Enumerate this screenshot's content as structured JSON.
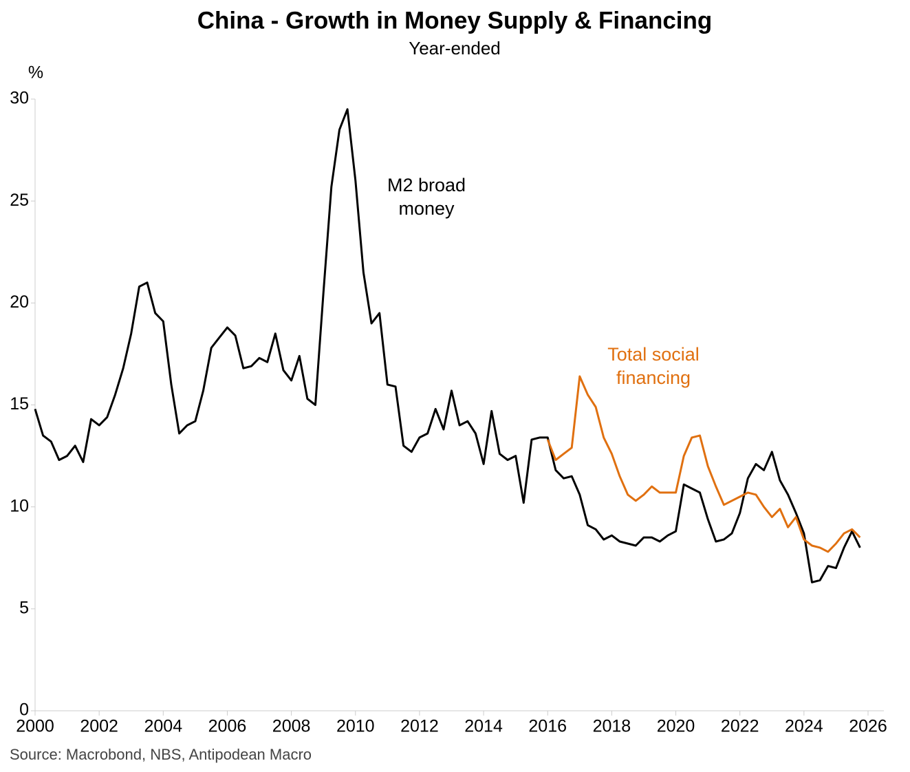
{
  "chart_data": {
    "type": "line",
    "title": "China - Growth in Money Supply & Financing",
    "subtitle": "Year-ended",
    "y_label": "%",
    "source": "Source: Macrobond, NBS, Antipodean Macro",
    "xlim": [
      2000,
      2026.5
    ],
    "xticks": [
      2000,
      2002,
      2004,
      2006,
      2008,
      2010,
      2012,
      2014,
      2016,
      2018,
      2020,
      2022,
      2024,
      2026
    ],
    "ylim": [
      0,
      30
    ],
    "yticks": [
      0,
      5,
      10,
      15,
      20,
      25,
      30
    ],
    "x": [
      2000,
      2000.25,
      2000.5,
      2000.75,
      2001,
      2001.25,
      2001.5,
      2001.75,
      2002,
      2002.25,
      2002.5,
      2002.75,
      2003,
      2003.25,
      2003.5,
      2003.75,
      2004,
      2004.25,
      2004.5,
      2004.75,
      2005,
      2005.25,
      2005.5,
      2005.75,
      2006,
      2006.25,
      2006.5,
      2006.75,
      2007,
      2007.25,
      2007.5,
      2007.75,
      2008,
      2008.25,
      2008.5,
      2008.75,
      2009,
      2009.25,
      2009.5,
      2009.75,
      2010,
      2010.25,
      2010.5,
      2010.75,
      2011,
      2011.25,
      2011.5,
      2011.75,
      2012,
      2012.25,
      2012.5,
      2012.75,
      2013,
      2013.25,
      2013.5,
      2013.75,
      2014,
      2014.25,
      2014.5,
      2014.75,
      2015,
      2015.25,
      2015.5,
      2015.75,
      2016,
      2016.25,
      2016.5,
      2016.75,
      2017,
      2017.25,
      2017.5,
      2017.75,
      2018,
      2018.25,
      2018.5,
      2018.75,
      2019,
      2019.25,
      2019.5,
      2019.75,
      2020,
      2020.25,
      2020.5,
      2020.75,
      2021,
      2021.25,
      2021.5,
      2021.75,
      2022,
      2022.25,
      2022.5,
      2022.75,
      2023,
      2023.25,
      2023.5,
      2023.75,
      2024,
      2024.25,
      2024.5,
      2024.75,
      2025,
      2025.25,
      2025.5,
      2025.75
    ],
    "series": [
      {
        "name": "M2 broad money",
        "color": "#000000",
        "values": [
          14.8,
          13.5,
          13.2,
          12.3,
          12.5,
          13.0,
          12.2,
          14.3,
          14.0,
          14.4,
          15.5,
          16.8,
          18.5,
          20.8,
          21.0,
          19.5,
          19.1,
          16.0,
          13.6,
          14.0,
          14.2,
          15.7,
          17.8,
          18.3,
          18.8,
          18.4,
          16.8,
          16.9,
          17.3,
          17.1,
          18.5,
          16.7,
          16.2,
          17.4,
          15.3,
          15.0,
          20.5,
          25.7,
          28.5,
          29.5,
          26.0,
          21.5,
          19.0,
          19.5,
          16.0,
          15.9,
          13.0,
          12.7,
          13.4,
          13.6,
          14.8,
          13.8,
          15.7,
          14.0,
          14.2,
          13.6,
          12.1,
          14.7,
          12.6,
          12.3,
          12.5,
          10.2,
          13.3,
          13.4,
          13.4,
          11.8,
          11.4,
          11.5,
          10.6,
          9.1,
          8.9,
          8.4,
          8.6,
          8.3,
          8.2,
          8.1,
          8.5,
          8.5,
          8.3,
          8.6,
          8.8,
          11.1,
          10.9,
          10.7,
          9.4,
          8.3,
          8.4,
          8.7,
          9.7,
          11.4,
          12.1,
          11.8,
          12.7,
          11.3,
          10.6,
          9.7,
          8.7,
          6.3,
          6.4,
          7.1,
          7.0,
          8.0,
          8.8,
          8.0
        ]
      },
      {
        "name": "Total social financing",
        "color": "#e07010",
        "values": [
          null,
          null,
          null,
          null,
          null,
          null,
          null,
          null,
          null,
          null,
          null,
          null,
          null,
          null,
          null,
          null,
          null,
          null,
          null,
          null,
          null,
          null,
          null,
          null,
          null,
          null,
          null,
          null,
          null,
          null,
          null,
          null,
          null,
          null,
          null,
          null,
          null,
          null,
          null,
          null,
          null,
          null,
          null,
          null,
          null,
          null,
          null,
          null,
          null,
          null,
          null,
          null,
          null,
          null,
          null,
          null,
          null,
          null,
          null,
          null,
          null,
          null,
          null,
          null,
          13.3,
          12.3,
          12.6,
          12.9,
          16.4,
          15.5,
          14.9,
          13.4,
          12.6,
          11.5,
          10.6,
          10.3,
          10.6,
          11.0,
          10.7,
          10.7,
          10.7,
          12.5,
          13.4,
          13.5,
          12.0,
          11.0,
          10.1,
          10.3,
          10.5,
          10.7,
          10.6,
          10.0,
          9.5,
          9.9,
          9.0,
          9.5,
          8.4,
          8.1,
          8.0,
          7.8,
          8.2,
          8.7,
          8.9,
          8.5
        ]
      }
    ]
  }
}
